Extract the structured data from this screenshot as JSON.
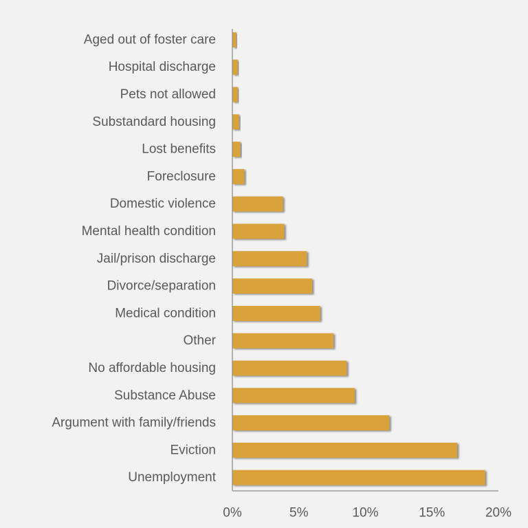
{
  "chart_data": {
    "type": "bar",
    "orientation": "horizontal",
    "title": "",
    "xlabel": "",
    "ylabel": "",
    "categories": [
      "Aged out of foster care",
      "Hospital discharge",
      "Pets not allowed",
      "Substandard housing",
      "Lost benefits",
      "Foreclosure",
      "Domestic violence",
      "Mental health condition",
      "Jail/prison discharge",
      "Divorce/separation",
      "Medical condition",
      "Other",
      "No affordable housing",
      "Substance Abuse",
      "Argument with family/friends",
      "Eviction",
      "Unemployment"
    ],
    "values": [
      0.3,
      0.4,
      0.4,
      0.5,
      0.6,
      0.9,
      3.8,
      3.9,
      5.6,
      6.0,
      6.6,
      7.6,
      8.6,
      9.2,
      11.8,
      16.9,
      19.0
    ],
    "xlim": [
      0,
      20
    ],
    "xticks": [
      "0%",
      "5%",
      "10%",
      "15%",
      "20%"
    ],
    "grid": false,
    "bar_color": "#d9a23b",
    "shadow_color": "#7f7f7f",
    "axis_color": "#8c8c8c"
  }
}
